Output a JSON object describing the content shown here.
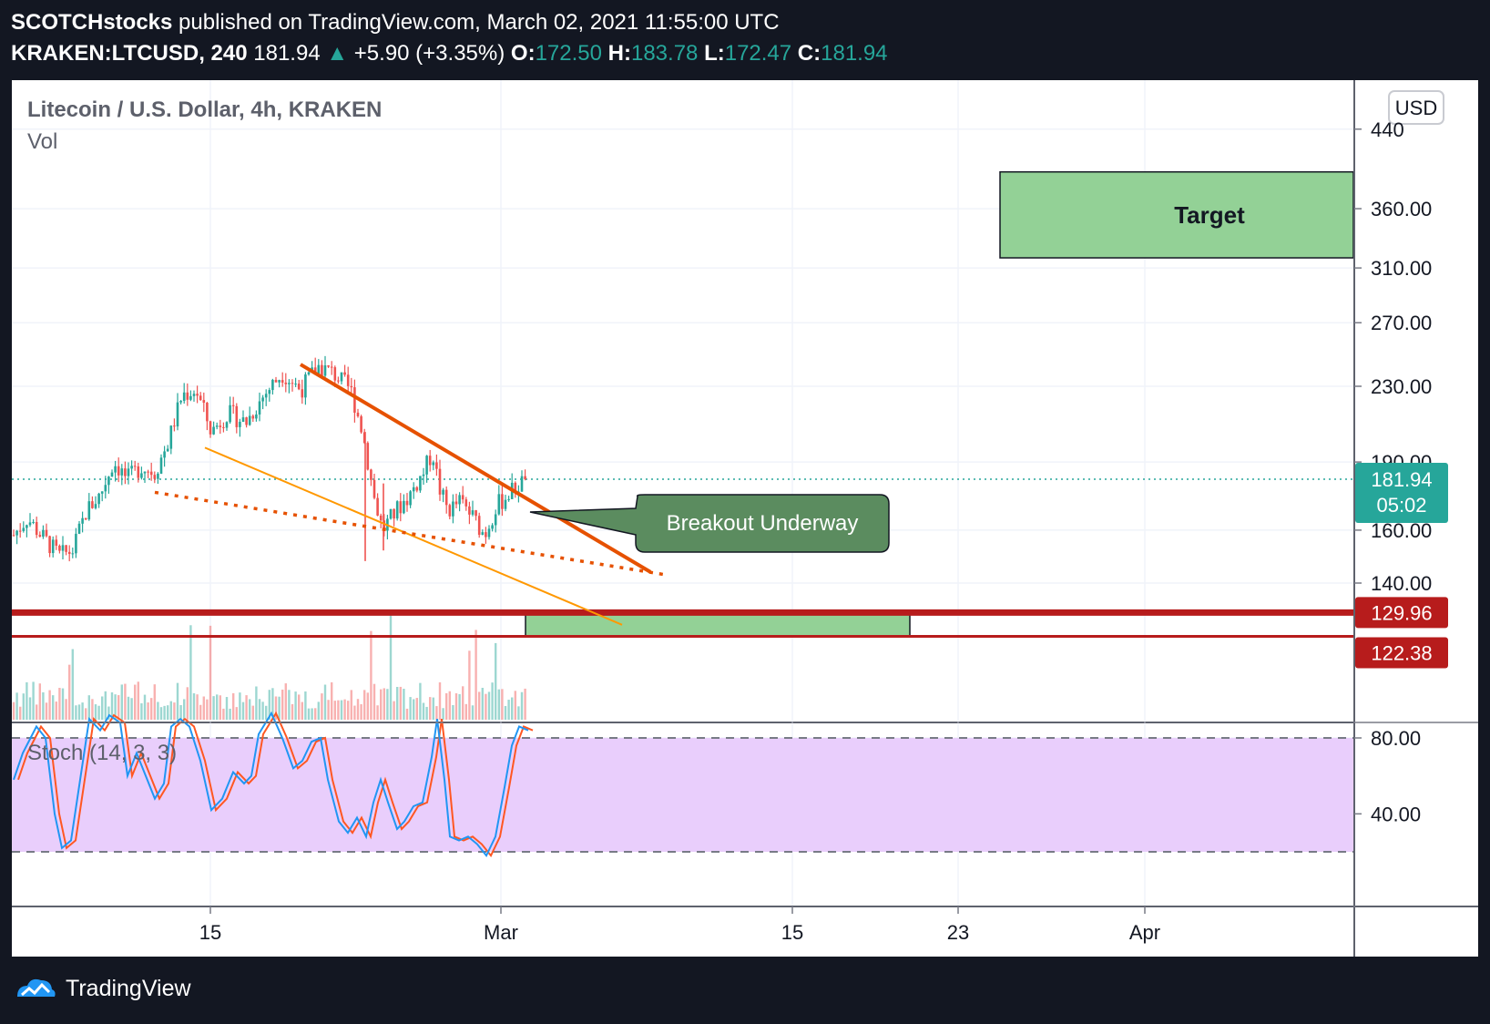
{
  "header": {
    "line1": {
      "author": "SCOTCHstocks",
      "rest": " published on TradingView.com, March 02, 2021 11:55:00 UTC"
    },
    "line2": {
      "symbol": "KRAKEN:LTCUSD, 240",
      "last": "181.94",
      "change": "+5.90 (+3.35%)",
      "o_label": "O:",
      "o": "172.50",
      "h_label": "H:",
      "h": "183.78",
      "l_label": "L:",
      "l": "172.47",
      "c_label": "C:",
      "c": "181.94"
    }
  },
  "chart_data": {
    "type": "candlestick",
    "title": "Litecoin / U.S. Dollar, 4h, KRAKEN",
    "volume_label": "Vol",
    "currency_button": "USD",
    "price_axis": {
      "scale": "log",
      "ticks": [
        "440",
        "360.00",
        "310.00",
        "270.00",
        "230.00",
        "190.00",
        "160.00",
        "140.00"
      ],
      "ylim": [
        105,
        450
      ]
    },
    "x_axis": {
      "ticks": [
        "15",
        "Mar",
        "15",
        "23",
        "Apr"
      ]
    },
    "last_price": {
      "value": "181.94",
      "countdown": "05:02"
    },
    "levels": [
      {
        "value": "129.96",
        "color": "#b71c1c"
      },
      {
        "value": "122.38",
        "color": "#b71c1c"
      }
    ],
    "boxes": [
      {
        "name": "target-zone",
        "label": "Target",
        "low": 318,
        "high": 395,
        "color": "#93d196"
      },
      {
        "name": "support-zone",
        "label": "",
        "low": 122.38,
        "high": 129.96,
        "color": "#93d196"
      }
    ],
    "annotation": {
      "label": "Breakout Underway",
      "color": "#5b8c5f"
    },
    "stochastic": {
      "label": "Stoch (14, 3, 3)",
      "ticks": [
        "80.00",
        "40.00"
      ],
      "upper_band": 80,
      "lower_band": 20,
      "ylim": [
        0,
        100
      ],
      "k_color": "#2196f3",
      "d_color": "#ff5722",
      "band_color": "#e9cefc"
    },
    "colors": {
      "up": "#26a69a",
      "down": "#ef5350",
      "trend": "#e65100",
      "grid": "#2a2e39",
      "plot_bg": "#ffffff"
    }
  },
  "footer": {
    "brand": "TradingView"
  }
}
